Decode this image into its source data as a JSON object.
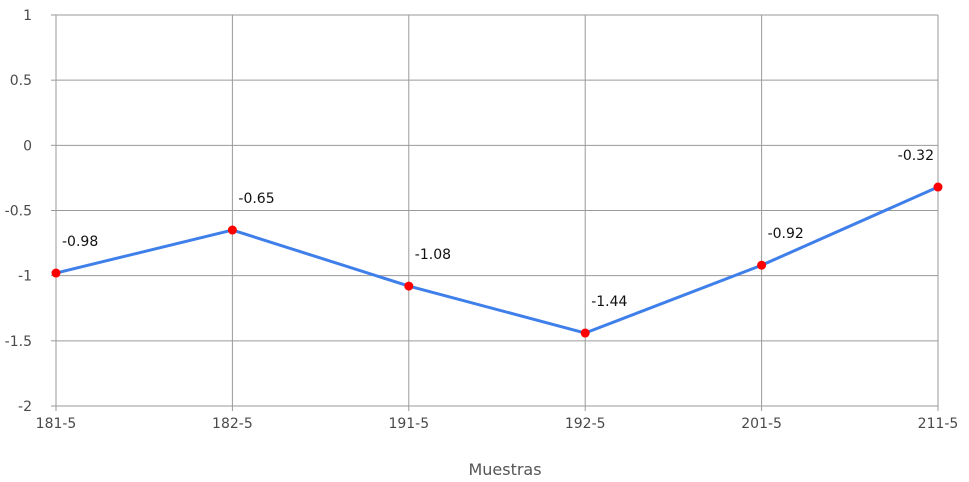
{
  "chart_data": {
    "type": "line",
    "title": "",
    "xlabel": "Muestras",
    "ylabel": "",
    "categories": [
      "181-5",
      "182-5",
      "191-5",
      "192-5",
      "201-5",
      "211-5"
    ],
    "series": [
      {
        "values": [
          -0.98,
          -0.65,
          -1.08,
          -1.44,
          -0.92,
          -0.32
        ],
        "data_labels": [
          "-0.98",
          "-0.65",
          "-1.08",
          "-1.44",
          "-0.92",
          "-0.32"
        ]
      }
    ],
    "ylim": [
      -2,
      1
    ],
    "y_ticks": [
      1,
      0.5,
      0,
      -0.5,
      -1,
      -1.5,
      -2
    ],
    "y_tick_labels": [
      "1",
      "0.5",
      "0",
      "-0.5",
      "-1",
      "-1.5",
      "-2"
    ],
    "grid": true,
    "legend": "none",
    "colors": {
      "line": "#3f7fea",
      "marker": "#ff0000",
      "grid": "#9a9a9a",
      "axis": "#9a9a9a"
    }
  }
}
